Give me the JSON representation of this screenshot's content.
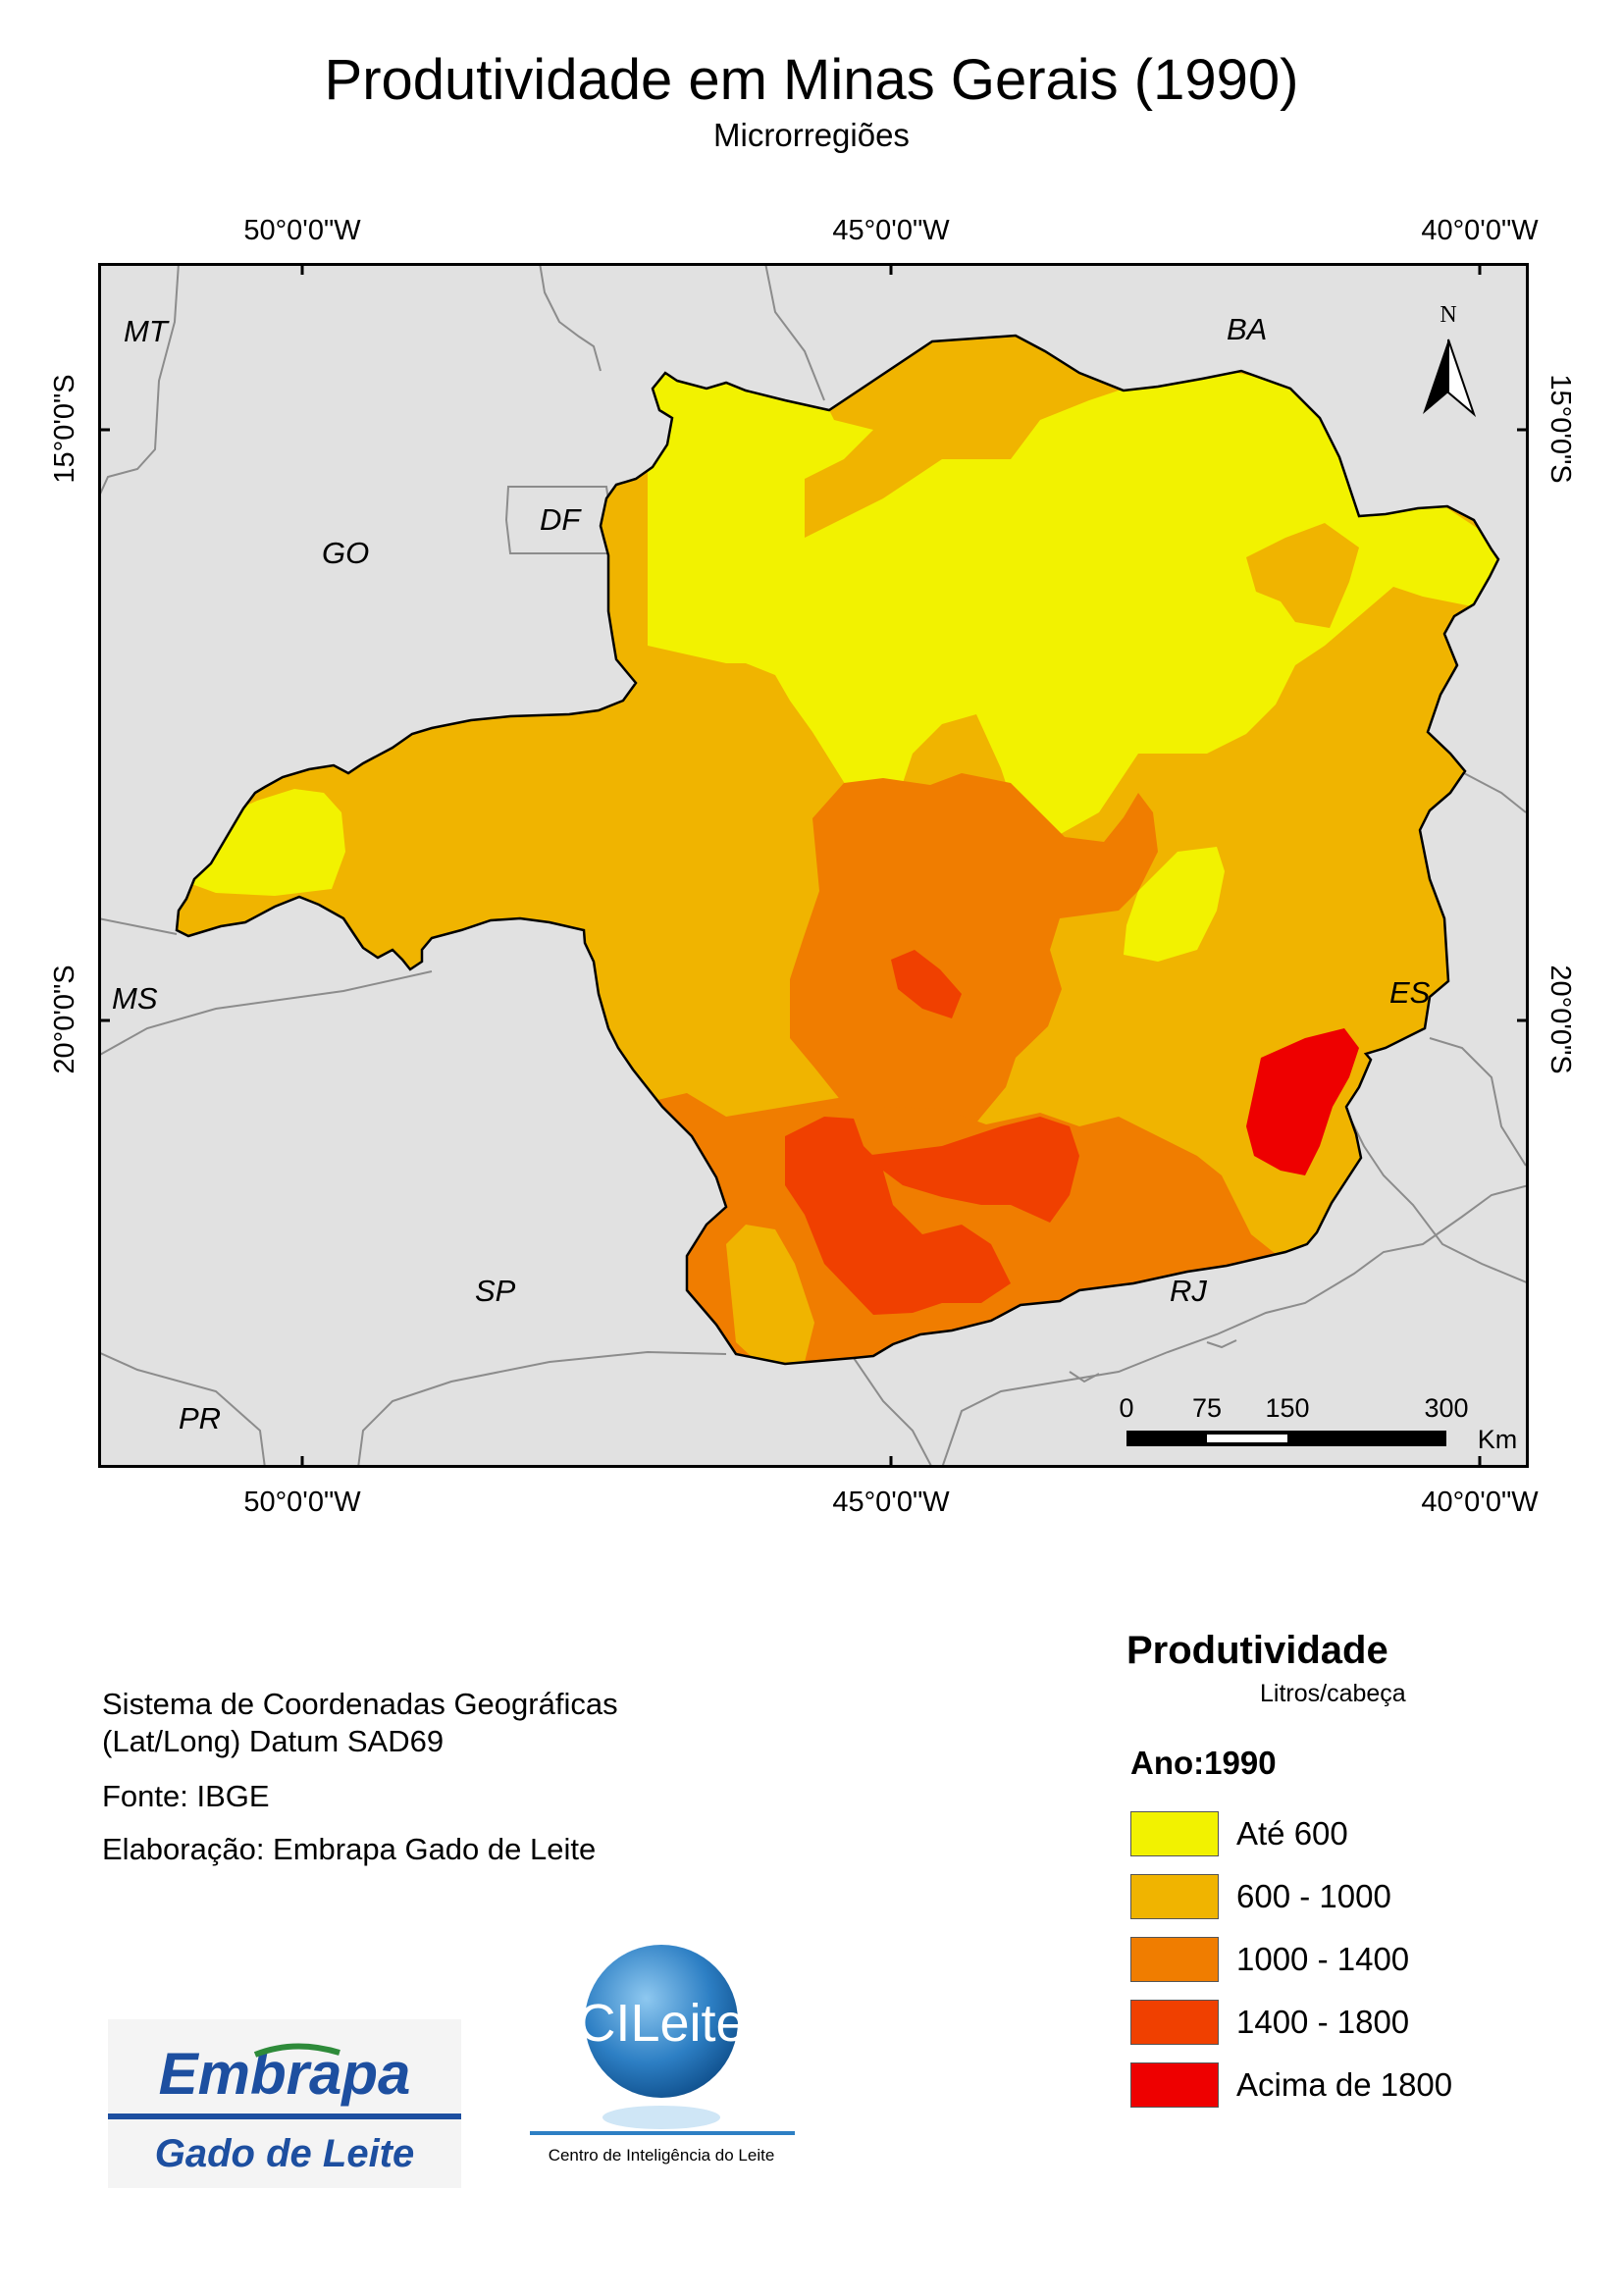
{
  "title": "Produtividade em Minas Gerais (1990)",
  "subtitle": "Microrregiões",
  "graticule": {
    "longitudes": [
      "50°0'0\"W",
      "45°0'0\"W",
      "40°0'0\"W"
    ],
    "latitudes": [
      "15°0'0\"S",
      "20°0'0\"S"
    ]
  },
  "map": {
    "state_labels": [
      "MT",
      "BA",
      "DF",
      "GO",
      "MS",
      "ES",
      "SP",
      "RJ",
      "PR"
    ],
    "north_arrow": {
      "label": "N"
    },
    "scale_bar": {
      "ticks": [
        "0",
        "75",
        "150",
        "300"
      ],
      "unit": "Km"
    },
    "colors": {
      "land": "#e1e1e1",
      "border": "#8c8c8c"
    }
  },
  "info": {
    "line1": "Sistema de Coordenadas Geográficas",
    "line2": "(Lat/Long) Datum SAD69",
    "source": "Fonte: IBGE",
    "author": "Elaboração: Embrapa Gado de Leite"
  },
  "legend": {
    "title": "Produtividade",
    "units": "Litros/cabeça",
    "year": "Ano:1990",
    "classes": [
      {
        "label": "Até 600",
        "color": "#f2f200"
      },
      {
        "label": "600 - 1000",
        "color": "#f0b400"
      },
      {
        "label": "1000 - 1400",
        "color": "#f07d00"
      },
      {
        "label": "1400 - 1800",
        "color": "#f04000"
      },
      {
        "label": "Acima de 1800",
        "color": "#ee0000"
      }
    ]
  },
  "logos": {
    "embrapa": {
      "name": "Embrapa",
      "subtitle": "Gado de Leite"
    },
    "cileite": {
      "name": "CILeite",
      "caption": "Centro de Inteligência do Leite"
    }
  }
}
